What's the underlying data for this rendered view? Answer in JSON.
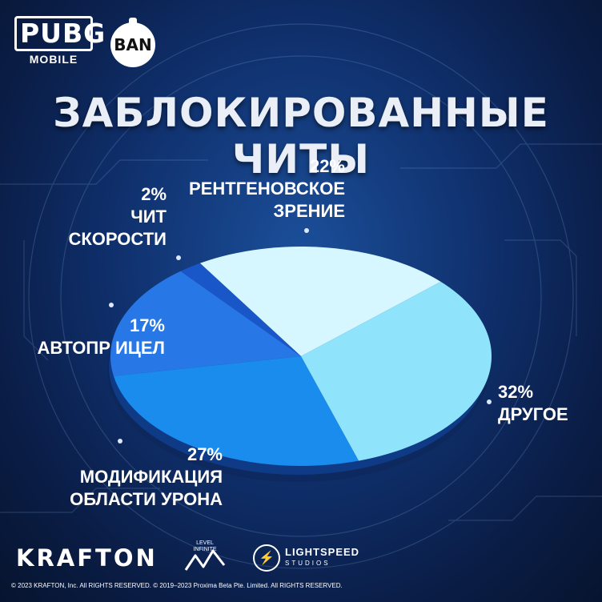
{
  "header": {
    "pubg_word": "PUBG",
    "pubg_sub": "MOBILE",
    "ban_label": "BAN"
  },
  "chart_data": {
    "type": "pie",
    "title": "ЗАБЛОКИРОВАННЫЕ ЧИТЫ",
    "slices": [
      {
        "key": "xray",
        "pct_label": "22%",
        "label": "РЕНТГЕНОВСКОЕ ЗРЕНИЕ",
        "label_lines": [
          "РЕНТГЕНОВСКОЕ",
          "ЗРЕНИЕ"
        ],
        "value": 22,
        "color": "#d6f7ff"
      },
      {
        "key": "other",
        "pct_label": "32%",
        "label": "ДРУГОЕ",
        "label_lines": [
          "ДРУГОЕ"
        ],
        "value": 32,
        "color": "#8fe4fb"
      },
      {
        "key": "dmg",
        "pct_label": "27%",
        "label": "МОДИФИКАЦИЯ ОБЛАСТИ УРОНА",
        "label_lines": [
          "МОДИФИКАЦИЯ",
          "ОБЛАСТИ УРОНА"
        ],
        "value": 27,
        "color": "#1a8cee"
      },
      {
        "key": "aim",
        "pct_label": "17%",
        "label": "АВТОПР ИЦЕЛ",
        "label_lines": [
          "АВТОПР ИЦЕЛ"
        ],
        "value": 17,
        "color": "#2877e6"
      },
      {
        "key": "speed",
        "pct_label": "2%",
        "label": "ЧИТ СКОРОСТИ",
        "label_lines": [
          "ЧИТ",
          "СКОРОСТИ"
        ],
        "value": 2,
        "color": "#1957c8"
      }
    ]
  },
  "footer": {
    "krafton": "KRAFTON",
    "level_infinite_top": "LEVEL",
    "level_infinite_bottom": "INFINITE",
    "lightspeed_main": "LIGHTSPEED",
    "lightspeed_sub": "STUDIOS",
    "copyright": "© 2023 KRAFTON, Inc. All RIGHTS RESERVED.    © 2019–2023 Proxima Beta Pte. Limited. All RIGHTS RESERVED."
  }
}
